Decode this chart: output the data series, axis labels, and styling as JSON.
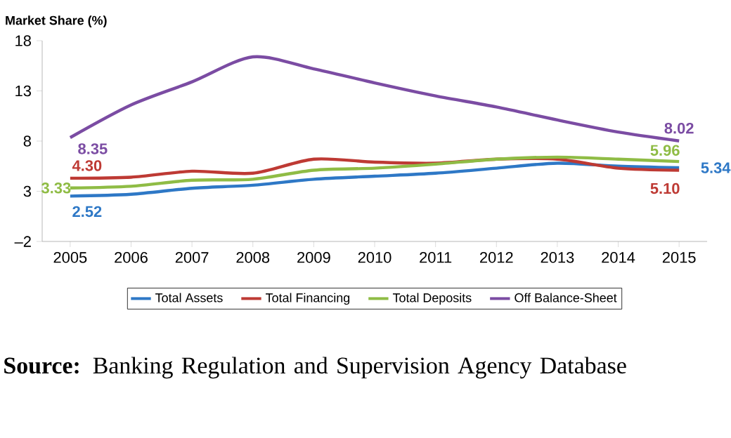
{
  "chart_data": {
    "type": "line",
    "ylabel": "Market Share (%)",
    "categories": [
      "2005",
      "2006",
      "2007",
      "2008",
      "2009",
      "2010",
      "2011",
      "2012",
      "2013",
      "2014",
      "2015"
    ],
    "series": [
      {
        "name": "Total Assets",
        "color": "#2e78c6",
        "values": [
          2.52,
          2.7,
          3.3,
          3.6,
          4.2,
          4.5,
          4.8,
          5.3,
          5.8,
          5.5,
          5.34
        ],
        "value_labels": [
          "2.52",
          null,
          null,
          null,
          null,
          null,
          null,
          null,
          null,
          null,
          "5.34"
        ]
      },
      {
        "name": "Total Financing",
        "color": "#be3a34",
        "values": [
          4.3,
          4.4,
          5.0,
          4.8,
          6.2,
          5.9,
          5.8,
          6.2,
          6.2,
          5.3,
          5.1
        ],
        "value_labels": [
          "4.30",
          null,
          null,
          null,
          null,
          null,
          null,
          null,
          null,
          null,
          "5.10"
        ]
      },
      {
        "name": "Total Deposits",
        "color": "#8fbc45",
        "values": [
          3.33,
          3.5,
          4.1,
          4.2,
          5.1,
          5.3,
          5.7,
          6.2,
          6.4,
          6.2,
          5.96
        ],
        "value_labels": [
          "3.33",
          null,
          null,
          null,
          null,
          null,
          null,
          null,
          null,
          null,
          "5.96"
        ]
      },
      {
        "name": "Off Balance-Sheet",
        "color": "#7b4ca3",
        "values": [
          8.35,
          11.6,
          13.9,
          16.39,
          15.2,
          13.8,
          12.5,
          11.4,
          10.1,
          8.9,
          8.02
        ],
        "value_labels": [
          "8.35",
          null,
          null,
          null,
          null,
          null,
          null,
          null,
          null,
          null,
          "8.02"
        ]
      }
    ],
    "ylim": [
      -2,
      18
    ],
    "yticks": [
      {
        "value": -2,
        "label": "–2"
      },
      3,
      8,
      13,
      18
    ],
    "legend": "bottom",
    "grid": false,
    "marker": "none",
    "line_style": "solid",
    "annotations": [
      "**Source:** Banking Regulation and Supervision Agency Database"
    ]
  }
}
